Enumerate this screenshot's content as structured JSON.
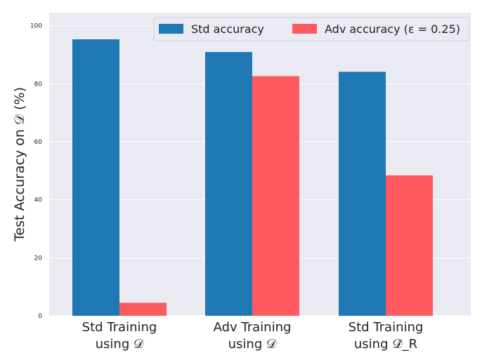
{
  "chart_data": {
    "type": "bar",
    "categories": [
      [
        "Std Training",
        "using 𝒟"
      ],
      [
        "Adv Training",
        "using 𝒟"
      ],
      [
        "Std Training",
        "using 𝒟̂_R"
      ]
    ],
    "series": [
      {
        "name": "Std accuracy",
        "color": "#1f77b4",
        "values": [
          95.3,
          90.9,
          84.1
        ]
      },
      {
        "name": "Adv accuracy (ε = 0.25)",
        "color": "#ff5a5f",
        "values": [
          4.5,
          82.6,
          48.4
        ]
      }
    ],
    "ylabel": "Test Accuracy on 𝒟 (%)",
    "xlabel": "",
    "title": "",
    "ylim": [
      0,
      104.5
    ],
    "yticks": [
      0,
      20,
      40,
      60,
      80,
      100
    ],
    "grid": true,
    "legend_position": "top-right",
    "background_color": "#eaeaf2"
  }
}
